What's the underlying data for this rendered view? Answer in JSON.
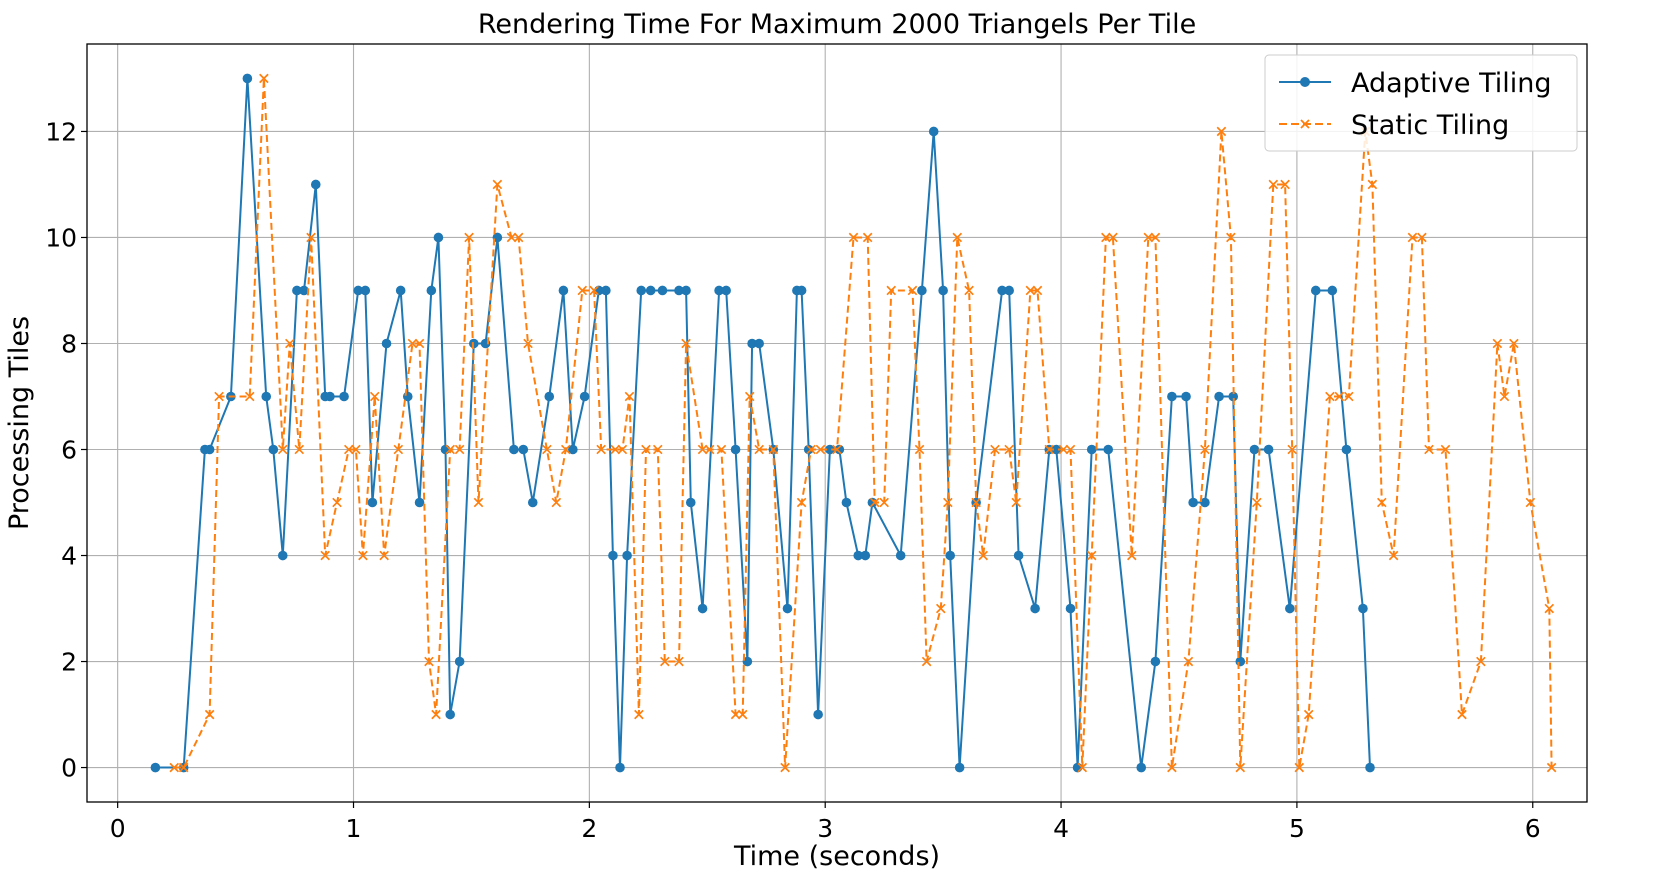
{
  "chart_data": {
    "type": "line",
    "title": "Rendering Time For Maximum 2000 Triangels Per Tile",
    "xlabel": "Time (seconds)",
    "ylabel": "Processing Tiles",
    "xlim": [
      -0.13,
      6.23
    ],
    "ylim": [
      -0.65,
      13.65
    ],
    "xticks": [
      0,
      1,
      2,
      3,
      4,
      5,
      6
    ],
    "yticks": [
      0,
      2,
      4,
      6,
      8,
      10,
      12
    ],
    "grid": true,
    "legend_position": "upper right",
    "series": [
      {
        "name": "Adaptive Tiling",
        "color": "#1f77b4",
        "line_style": "solid",
        "marker": "circle",
        "x": [
          0.16,
          0.28,
          0.37,
          0.39,
          0.48,
          0.55,
          0.63,
          0.66,
          0.7,
          0.76,
          0.79,
          0.84,
          0.88,
          0.9,
          0.96,
          1.02,
          1.05,
          1.08,
          1.14,
          1.2,
          1.23,
          1.28,
          1.33,
          1.36,
          1.39,
          1.41,
          1.45,
          1.51,
          1.56,
          1.61,
          1.68,
          1.72,
          1.76,
          1.83,
          1.89,
          1.93,
          1.98,
          2.04,
          2.07,
          2.1,
          2.13,
          2.16,
          2.22,
          2.26,
          2.31,
          2.38,
          2.41,
          2.43,
          2.48,
          2.55,
          2.58,
          2.62,
          2.67,
          2.69,
          2.72,
          2.78,
          2.84,
          2.88,
          2.9,
          2.93,
          2.97,
          3.02,
          3.06,
          3.09,
          3.14,
          3.17,
          3.2,
          3.32,
          3.41,
          3.46,
          3.5,
          3.53,
          3.57,
          3.64,
          3.75,
          3.78,
          3.82,
          3.89,
          3.95,
          3.98,
          4.04,
          4.07,
          4.13,
          4.2,
          4.34,
          4.4,
          4.47,
          4.53,
          4.56,
          4.61,
          4.67,
          4.73,
          4.76,
          4.82,
          4.88,
          4.97,
          5.08,
          5.15,
          5.21,
          5.28,
          5.31
        ],
        "y": [
          0,
          0,
          6,
          6,
          7,
          13,
          7,
          6,
          4,
          9,
          9,
          11,
          7,
          7,
          7,
          9,
          9,
          5,
          8,
          9,
          7,
          5,
          9,
          10,
          6,
          1,
          2,
          8,
          8,
          10,
          6,
          6,
          5,
          7,
          9,
          6,
          7,
          9,
          9,
          4,
          0,
          4,
          9,
          9,
          9,
          9,
          9,
          5,
          3,
          9,
          9,
          6,
          2,
          8,
          8,
          6,
          3,
          9,
          9,
          6,
          1,
          6,
          6,
          5,
          4,
          4,
          5,
          4,
          9,
          12,
          9,
          4,
          0,
          5,
          9,
          9,
          4,
          3,
          6,
          6,
          3,
          0,
          6,
          6,
          0,
          2,
          7,
          7,
          5,
          5,
          7,
          7,
          2,
          6,
          6,
          3,
          9,
          9,
          6,
          3,
          0
        ]
      },
      {
        "name": "Static Tiling",
        "color": "#ff7f0e",
        "line_style": "dashed",
        "marker": "x",
        "x": [
          0.24,
          0.28,
          0.39,
          0.43,
          0.56,
          0.62,
          0.7,
          0.73,
          0.77,
          0.82,
          0.88,
          0.93,
          0.98,
          1.01,
          1.04,
          1.09,
          1.13,
          1.19,
          1.25,
          1.28,
          1.32,
          1.35,
          1.41,
          1.45,
          1.49,
          1.53,
          1.61,
          1.67,
          1.7,
          1.74,
          1.82,
          1.86,
          1.9,
          1.97,
          2.02,
          2.05,
          2.11,
          2.14,
          2.17,
          2.21,
          2.24,
          2.29,
          2.32,
          2.38,
          2.41,
          2.48,
          2.51,
          2.56,
          2.62,
          2.65,
          2.68,
          2.72,
          2.78,
          2.83,
          2.9,
          2.94,
          2.98,
          3.05,
          3.12,
          3.18,
          3.21,
          3.25,
          3.28,
          3.37,
          3.4,
          3.43,
          3.49,
          3.52,
          3.56,
          3.61,
          3.64,
          3.67,
          3.72,
          3.78,
          3.81,
          3.87,
          3.9,
          3.95,
          4.01,
          4.04,
          4.09,
          4.13,
          4.19,
          4.22,
          4.3,
          4.37,
          4.4,
          4.47,
          4.54,
          4.61,
          4.68,
          4.72,
          4.76,
          4.83,
          4.9,
          4.95,
          4.98,
          5.01,
          5.05,
          5.14,
          5.18,
          5.22,
          5.29,
          5.32,
          5.36,
          5.41,
          5.49,
          5.53,
          5.56,
          5.63,
          5.7,
          5.78,
          5.85,
          5.88,
          5.92,
          5.99,
          6.07,
          6.08
        ],
        "y": [
          0,
          0,
          1,
          7,
          7,
          13,
          6,
          8,
          6,
          10,
          4,
          5,
          6,
          6,
          4,
          7,
          4,
          6,
          8,
          8,
          2,
          1,
          6,
          6,
          10,
          5,
          11,
          10,
          10,
          8,
          6,
          5,
          6,
          9,
          9,
          6,
          6,
          6,
          7,
          1,
          6,
          6,
          2,
          2,
          8,
          6,
          6,
          6,
          1,
          1,
          7,
          6,
          6,
          0,
          5,
          6,
          6,
          6,
          10,
          10,
          5,
          5,
          9,
          9,
          6,
          2,
          3,
          5,
          10,
          9,
          5,
          4,
          6,
          6,
          5,
          9,
          9,
          6,
          6,
          6,
          0,
          4,
          10,
          10,
          4,
          10,
          10,
          0,
          2,
          6,
          12,
          10,
          0,
          5,
          11,
          11,
          6,
          0,
          1,
          7,
          7,
          7,
          12,
          11,
          5,
          4,
          10,
          10,
          6,
          6,
          1,
          2,
          8,
          7,
          8,
          5,
          3,
          0
        ]
      }
    ]
  }
}
